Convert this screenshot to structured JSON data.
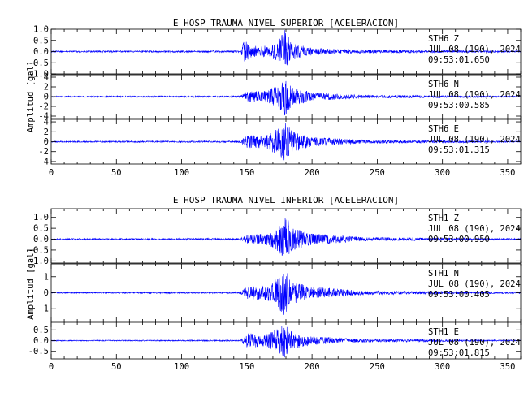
{
  "chart_data": [
    {
      "type": "line",
      "title": "E HOSP TRAUMA NIVEL SUPERIOR [ACELERACION]",
      "ylabel": "Amplitud [gal]",
      "xlim": [
        0,
        360
      ],
      "x_ticks": [
        "0",
        "50",
        "100",
        "150",
        "200",
        "250",
        "300",
        "350"
      ],
      "trace_color": "#0000ff",
      "panels": [
        {
          "station": "STH6",
          "component": "Z",
          "date": "JUL 08 (190), 2024",
          "time": "09:53:01.650",
          "ylim": [
            -1.0,
            1.0
          ],
          "y_ticks": [
            {
              "v": 1.0,
              "label": "1.0"
            },
            {
              "v": 0.5,
              "label": "0.5"
            },
            {
              "v": 0.0,
              "label": "0.0"
            },
            {
              "v": -0.5,
              "label": "-0.5"
            },
            {
              "v": -1.0,
              "label": "-1.0"
            }
          ],
          "peak_amplitude": 1.0,
          "envelope": [
            [
              0,
              0.03
            ],
            [
              145,
              0.04
            ],
            [
              148,
              0.55
            ],
            [
              152,
              0.25
            ],
            [
              168,
              0.25
            ],
            [
              175,
              0.5
            ],
            [
              179,
              0.95
            ],
            [
              184,
              0.4
            ],
            [
              200,
              0.15
            ],
            [
              235,
              0.07
            ],
            [
              360,
              0.03
            ]
          ]
        },
        {
          "station": "STH6",
          "component": "N",
          "date": "JUL 08 (190), 2024",
          "time": "09:53:00.585",
          "ylim": [
            -4.5,
            4.5
          ],
          "y_ticks": [
            {
              "v": 4,
              "label": "4"
            },
            {
              "v": 2,
              "label": "2"
            },
            {
              "v": 0,
              "label": "0"
            },
            {
              "v": -2,
              "label": "-2"
            },
            {
              "v": -4,
              "label": "-4"
            }
          ],
          "peak_amplitude": 4.0,
          "envelope": [
            [
              0,
              0.12
            ],
            [
              145,
              0.15
            ],
            [
              150,
              1.0
            ],
            [
              165,
              1.1
            ],
            [
              175,
              2.5
            ],
            [
              179,
              3.8
            ],
            [
              185,
              1.8
            ],
            [
              200,
              0.8
            ],
            [
              240,
              0.3
            ],
            [
              360,
              0.12
            ]
          ]
        },
        {
          "station": "STH6",
          "component": "E",
          "date": "JUL 08 (190), 2024",
          "time": "09:53:01.315",
          "ylim": [
            -4.5,
            4.5
          ],
          "y_ticks": [
            {
              "v": 4,
              "label": "4"
            },
            {
              "v": 2,
              "label": "2"
            },
            {
              "v": 0,
              "label": "0"
            },
            {
              "v": -2,
              "label": "-2"
            },
            {
              "v": -4,
              "label": "-4"
            }
          ],
          "peak_amplitude": 4.0,
          "envelope": [
            [
              0,
              0.12
            ],
            [
              145,
              0.15
            ],
            [
              150,
              1.2
            ],
            [
              165,
              1.3
            ],
            [
              175,
              2.8
            ],
            [
              179,
              3.8
            ],
            [
              185,
              2.0
            ],
            [
              200,
              0.9
            ],
            [
              240,
              0.35
            ],
            [
              360,
              0.12
            ]
          ]
        }
      ]
    },
    {
      "type": "line",
      "title": "E HOSP TRAUMA NIVEL INFERIOR [ACELERACION]",
      "ylabel": "Amplitud [gal]",
      "xlim": [
        0,
        360
      ],
      "x_ticks": [
        "0",
        "50",
        "100",
        "150",
        "200",
        "250",
        "300",
        "350"
      ],
      "trace_color": "#0000ff",
      "panels": [
        {
          "station": "STH1",
          "component": "Z",
          "date": "JUL 08 (190), 2024",
          "time": "09:53:00.950",
          "ylim": [
            -1.1,
            1.4
          ],
          "y_ticks": [
            {
              "v": 1.0,
              "label": "1.0"
            },
            {
              "v": 0.5,
              "label": "0.5"
            },
            {
              "v": 0.0,
              "label": "0.0"
            },
            {
              "v": -0.5,
              "label": "-0.5"
            },
            {
              "v": -1.0,
              "label": "-1.0"
            }
          ],
          "peak_amplitude": 1.2,
          "envelope": [
            [
              0,
              0.03
            ],
            [
              145,
              0.04
            ],
            [
              150,
              0.2
            ],
            [
              165,
              0.25
            ],
            [
              175,
              0.6
            ],
            [
              179,
              1.15
            ],
            [
              185,
              0.5
            ],
            [
              200,
              0.25
            ],
            [
              240,
              0.08
            ],
            [
              360,
              0.03
            ]
          ]
        },
        {
          "station": "STH1",
          "component": "N",
          "date": "JUL 08 (190), 2024",
          "time": "09:53:00.405",
          "ylim": [
            -1.8,
            1.8
          ],
          "y_ticks": [
            {
              "v": 1,
              "label": "1"
            },
            {
              "v": 0,
              "label": "0"
            },
            {
              "v": -1,
              "label": "-1"
            }
          ],
          "peak_amplitude": 1.6,
          "envelope": [
            [
              0,
              0.04
            ],
            [
              145,
              0.05
            ],
            [
              150,
              0.4
            ],
            [
              165,
              0.45
            ],
            [
              175,
              1.0
            ],
            [
              179,
              1.55
            ],
            [
              185,
              0.7
            ],
            [
              200,
              0.35
            ],
            [
              240,
              0.12
            ],
            [
              360,
              0.04
            ]
          ]
        },
        {
          "station": "STH1",
          "component": "E",
          "date": "JUL 08 (190), 2024",
          "time": "09:53:01.815",
          "ylim": [
            -0.85,
            0.85
          ],
          "y_ticks": [
            {
              "v": 0.5,
              "label": "0.5"
            },
            {
              "v": 0.0,
              "label": "0.0"
            },
            {
              "v": -0.5,
              "label": "-0.5"
            }
          ],
          "peak_amplitude": 0.8,
          "envelope": [
            [
              0,
              0.02
            ],
            [
              145,
              0.03
            ],
            [
              150,
              0.35
            ],
            [
              165,
              0.3
            ],
            [
              175,
              0.6
            ],
            [
              179,
              0.8
            ],
            [
              185,
              0.4
            ],
            [
              200,
              0.2
            ],
            [
              240,
              0.08
            ],
            [
              360,
              0.02
            ]
          ]
        }
      ]
    }
  ]
}
